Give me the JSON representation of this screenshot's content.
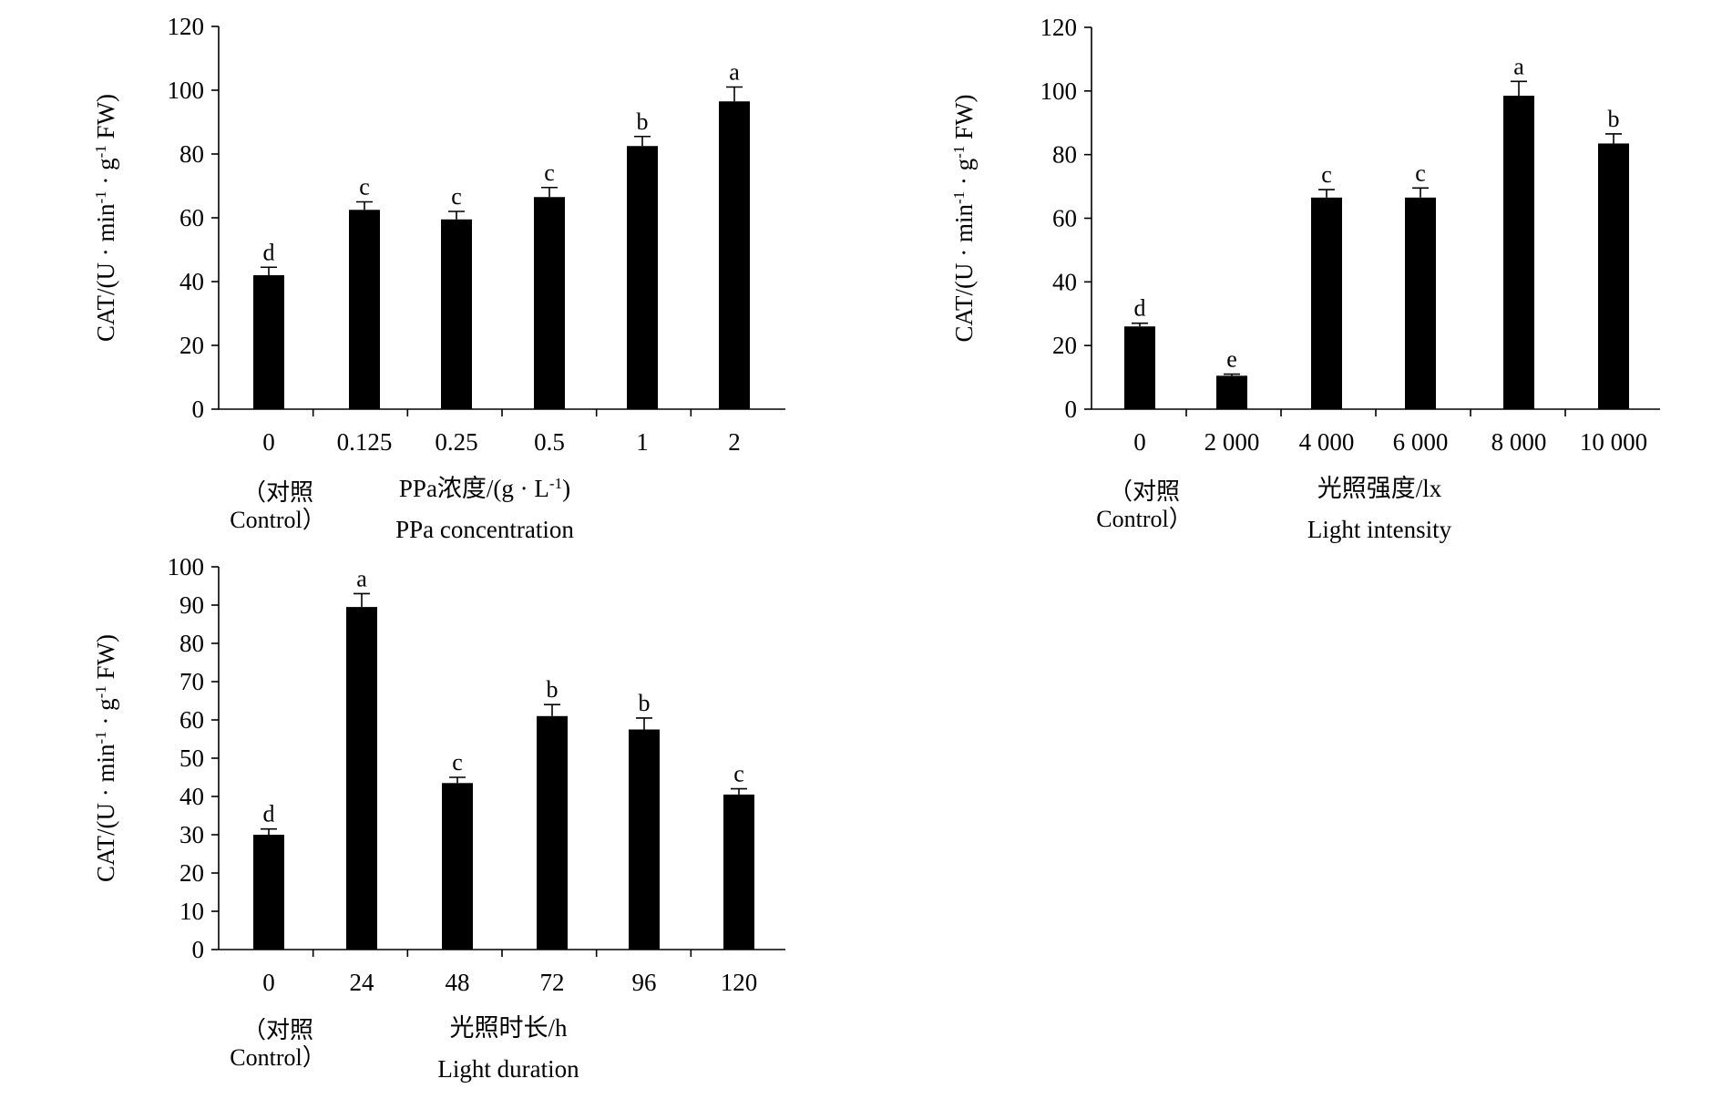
{
  "chart_data": [
    {
      "type": "bar",
      "ylabel": "CAT/(U · min-1 · g-1 FW)",
      "ylabel_parts": {
        "a": "CAT/(U · min",
        "sup1": "-1",
        "b": " · g",
        "sup2": "-1",
        "c": " FW)"
      },
      "yticks": [
        0,
        20,
        40,
        60,
        80,
        100,
        120
      ],
      "ylim": [
        0,
        120
      ],
      "categories": [
        "0",
        "0.125",
        "0.25",
        "0.5",
        "1",
        "2"
      ],
      "values": [
        42,
        62.5,
        59.5,
        66.5,
        82.5,
        96.5
      ],
      "errors": [
        2.5,
        2.5,
        2.5,
        3,
        3,
        4.5
      ],
      "significance": [
        "d",
        "c",
        "c",
        "c",
        "b",
        "a"
      ],
      "control_label": [
        "（对照",
        "Control）"
      ],
      "xlabel_cn": "PPa浓度/(g · L",
      "xlabel_cn_sup": "-1",
      "xlabel_cn_end": ")",
      "xlabel_en": "PPa concentration",
      "grid": false,
      "legend": "none"
    },
    {
      "type": "bar",
      "ylabel": "CAT/(U · min-1 · g-1 FW)",
      "ylabel_parts": {
        "a": "CAT/(U · min",
        "sup1": "-1",
        "b": " · g",
        "sup2": "-1",
        "c": " FW)"
      },
      "yticks": [
        0,
        20,
        40,
        60,
        80,
        100,
        120
      ],
      "ylim": [
        0,
        120
      ],
      "categories": [
        "0",
        "2 000",
        "4 000",
        "6 000",
        "8 000",
        "10 000"
      ],
      "values": [
        26,
        10.5,
        66.5,
        66.5,
        98.5,
        83.5
      ],
      "errors": [
        1,
        0.5,
        2.5,
        3,
        4.5,
        3
      ],
      "significance": [
        "d",
        "e",
        "c",
        "c",
        "a",
        "b"
      ],
      "control_label": [
        "（对照",
        "Control）"
      ],
      "xlabel_cn": "光照强度/lx",
      "xlabel_cn_sup": "",
      "xlabel_cn_end": "",
      "xlabel_en": "Light intensity",
      "grid": false,
      "legend": "none"
    },
    {
      "type": "bar",
      "ylabel": "CAT/(U · min-1 · g-1 FW)",
      "ylabel_parts": {
        "a": "CAT/(U · min",
        "sup1": "-1",
        "b": " · g",
        "sup2": "-1",
        "c": " FW)"
      },
      "yticks": [
        0,
        10,
        20,
        30,
        40,
        50,
        60,
        70,
        80,
        90,
        100
      ],
      "ylim": [
        0,
        100
      ],
      "categories": [
        "0",
        "24",
        "48",
        "72",
        "96",
        "120"
      ],
      "values": [
        30,
        89.5,
        43.5,
        61,
        57.5,
        40.5
      ],
      "errors": [
        1.5,
        3.5,
        1.5,
        3,
        3,
        1.5
      ],
      "significance": [
        "d",
        "a",
        "c",
        "b",
        "b",
        "c"
      ],
      "control_label": [
        "（对照",
        "Control）"
      ],
      "xlabel_cn": "光照时长/h",
      "xlabel_cn_sup": "",
      "xlabel_cn_end": "",
      "xlabel_en": "Light duration",
      "grid": false,
      "legend": "none"
    }
  ]
}
